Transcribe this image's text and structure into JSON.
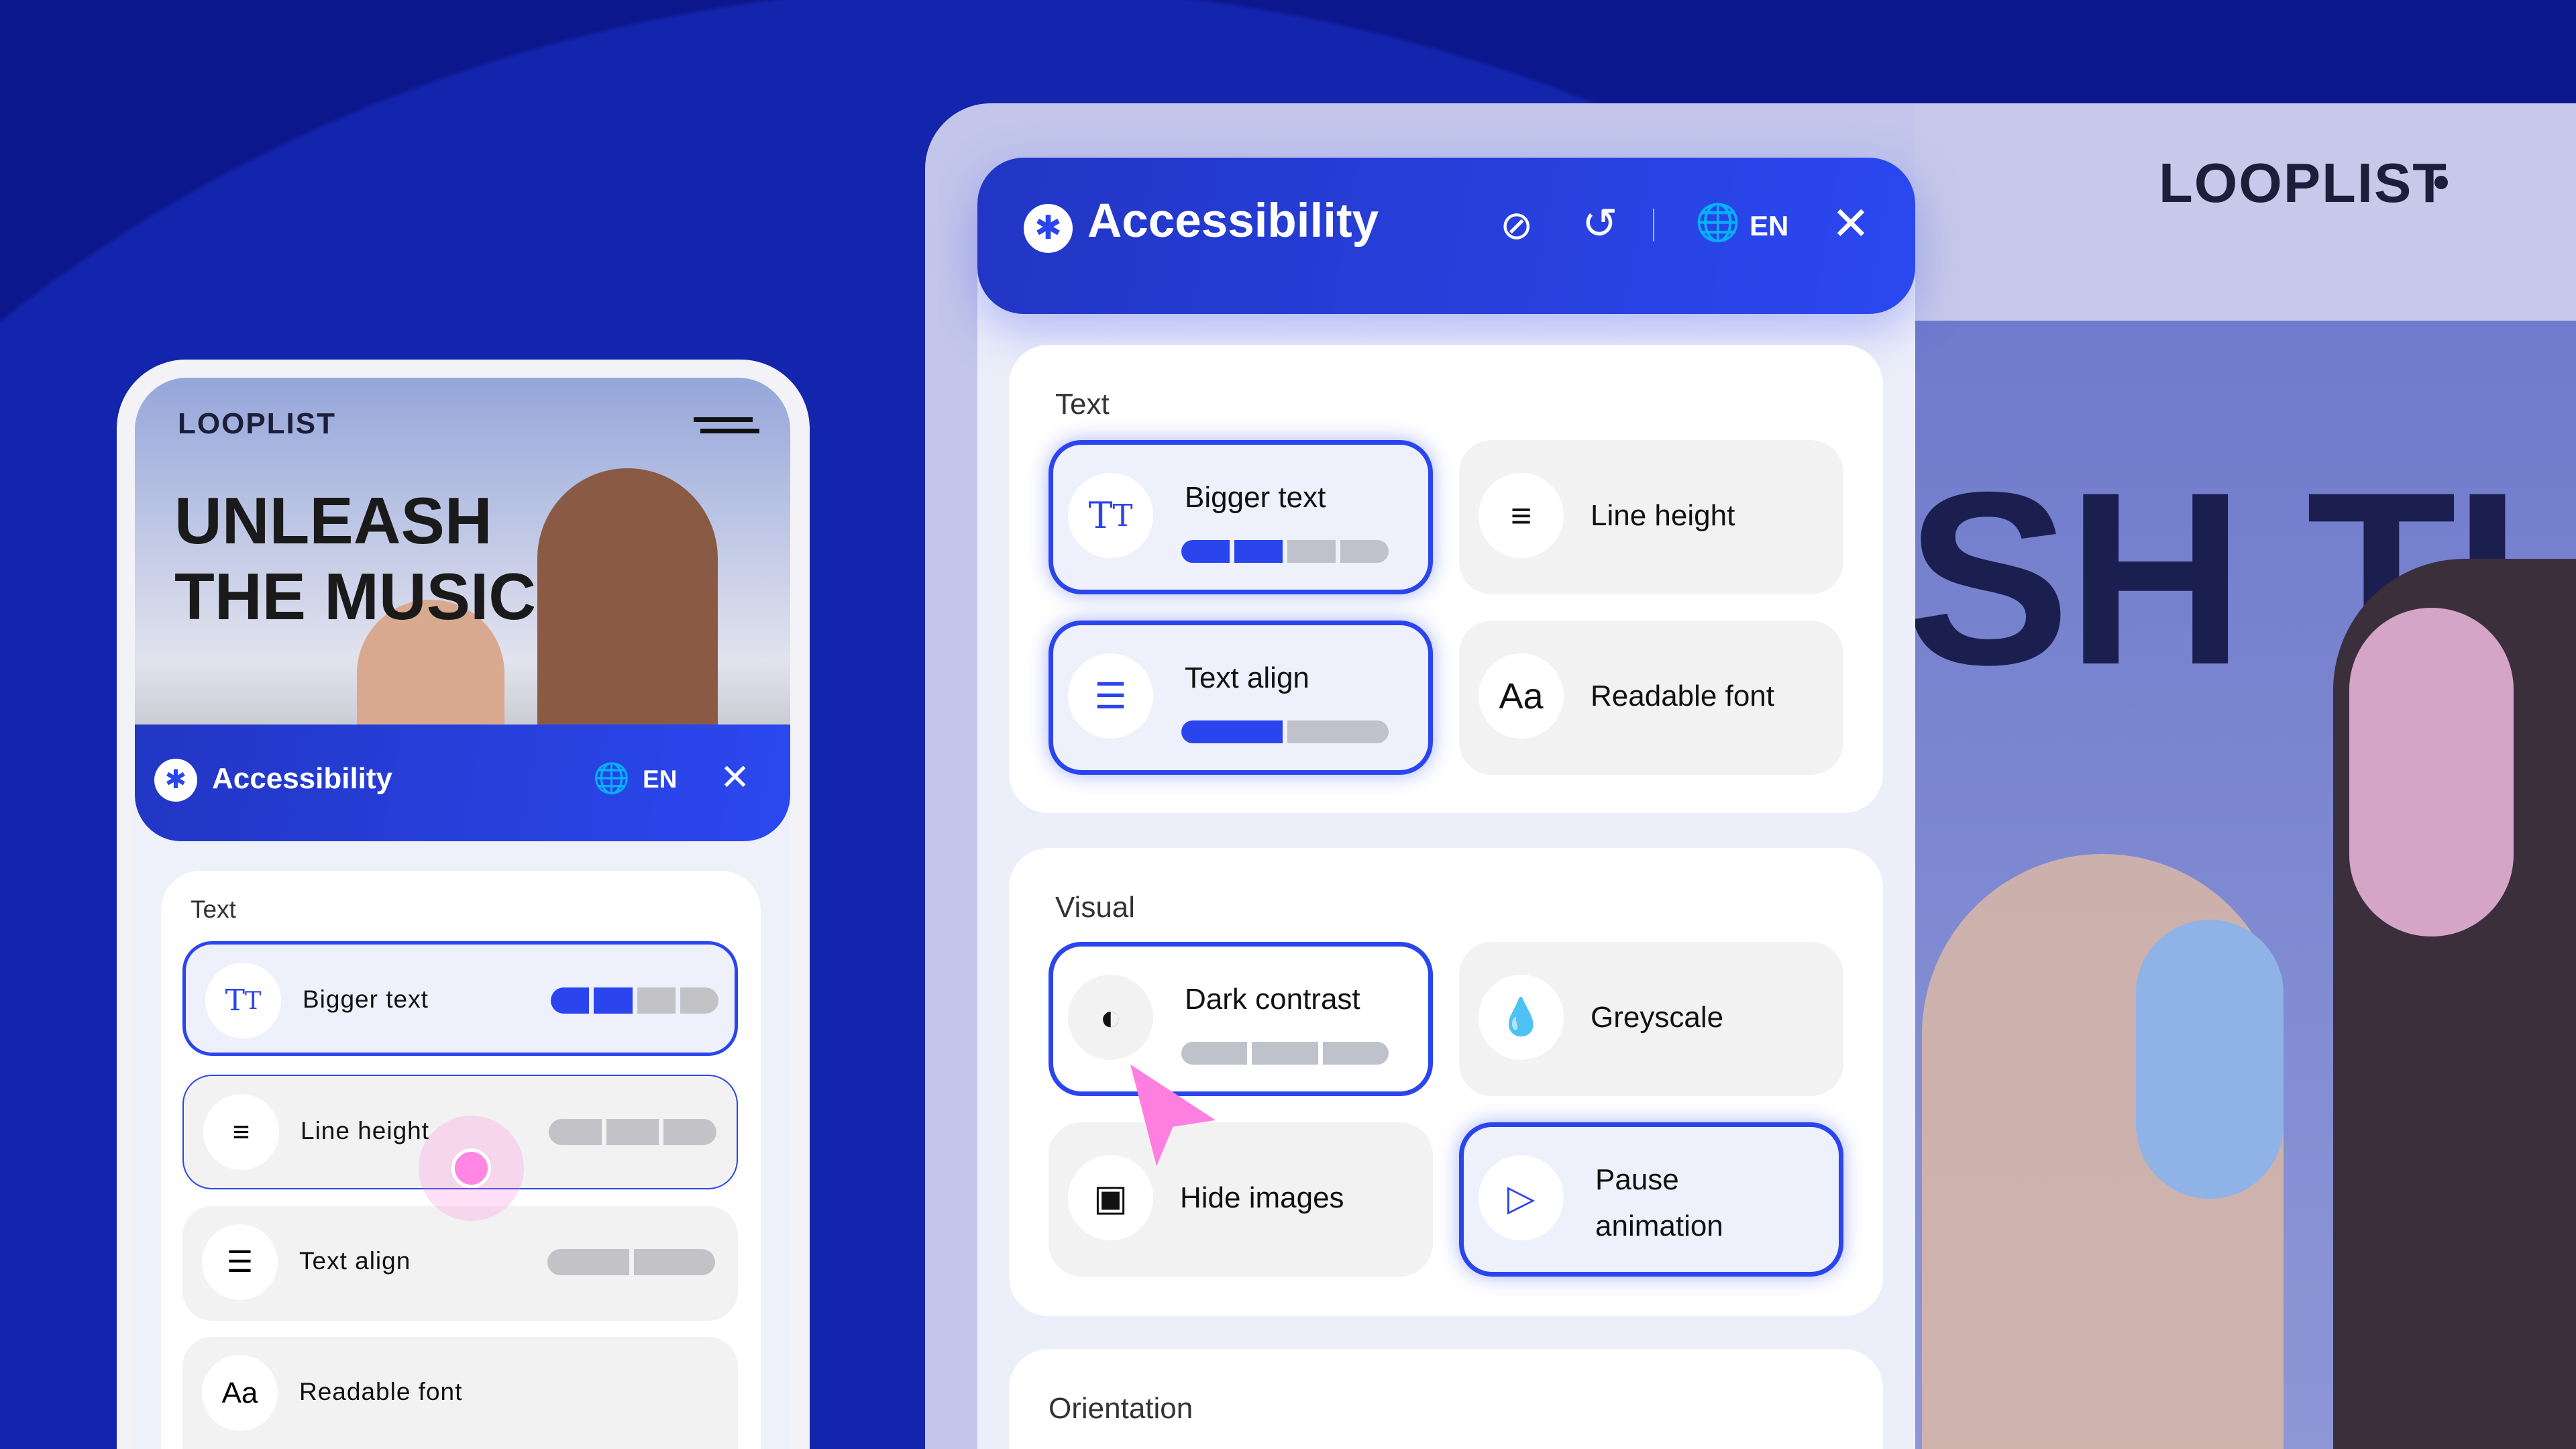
{
  "colors": {
    "accent": "#2b45ee",
    "background": "#0c178e",
    "cursor": "#ff7fe0"
  },
  "site": {
    "logo": "LOOPLIST",
    "hero_fragment": "SH TH"
  },
  "panel": {
    "title": "Accessibility",
    "language": "EN",
    "icons": [
      "accessibility-icon",
      "hide-eye-icon",
      "reset-icon",
      "globe-icon",
      "close-icon"
    ],
    "sections": [
      {
        "title": "Text",
        "items": [
          {
            "label": "Bigger text",
            "icon": "text-size-icon",
            "active": true,
            "level": 2,
            "levels": 4
          },
          {
            "label": "Line height",
            "icon": "line-height-icon",
            "active": false
          },
          {
            "label": "Text align",
            "icon": "align-left-icon",
            "active": true,
            "level": 1,
            "levels": 2
          },
          {
            "label": "Readable font",
            "icon": "font-icon",
            "active": false
          }
        ]
      },
      {
        "title": "Visual",
        "items": [
          {
            "label": "Dark contrast",
            "icon": "contrast-icon",
            "active": true,
            "level": 0,
            "levels": 3
          },
          {
            "label": "Greyscale",
            "icon": "drop-icon",
            "active": false
          },
          {
            "label": "Hide images",
            "icon": "hide-image-icon",
            "active": false
          },
          {
            "label": "Pause animation",
            "icon": "pause-animation-icon",
            "active": true
          }
        ]
      },
      {
        "title": "Orientation",
        "items": []
      }
    ]
  },
  "phone": {
    "logo": "LOOPLIST",
    "hero_line1": "UNLEASH",
    "hero_line2": "THE MUSIC",
    "panel_title": "Accessibility",
    "language": "EN",
    "section": "Text",
    "rows": [
      {
        "label": "Bigger text",
        "active": true,
        "level": 2,
        "levels": 4
      },
      {
        "label": "Line height",
        "active": false,
        "hover": true,
        "level": 0,
        "levels": 3
      },
      {
        "label": "Text align",
        "active": false,
        "level": 0,
        "levels": 2
      },
      {
        "label": "Readable font",
        "active": false
      }
    ]
  }
}
